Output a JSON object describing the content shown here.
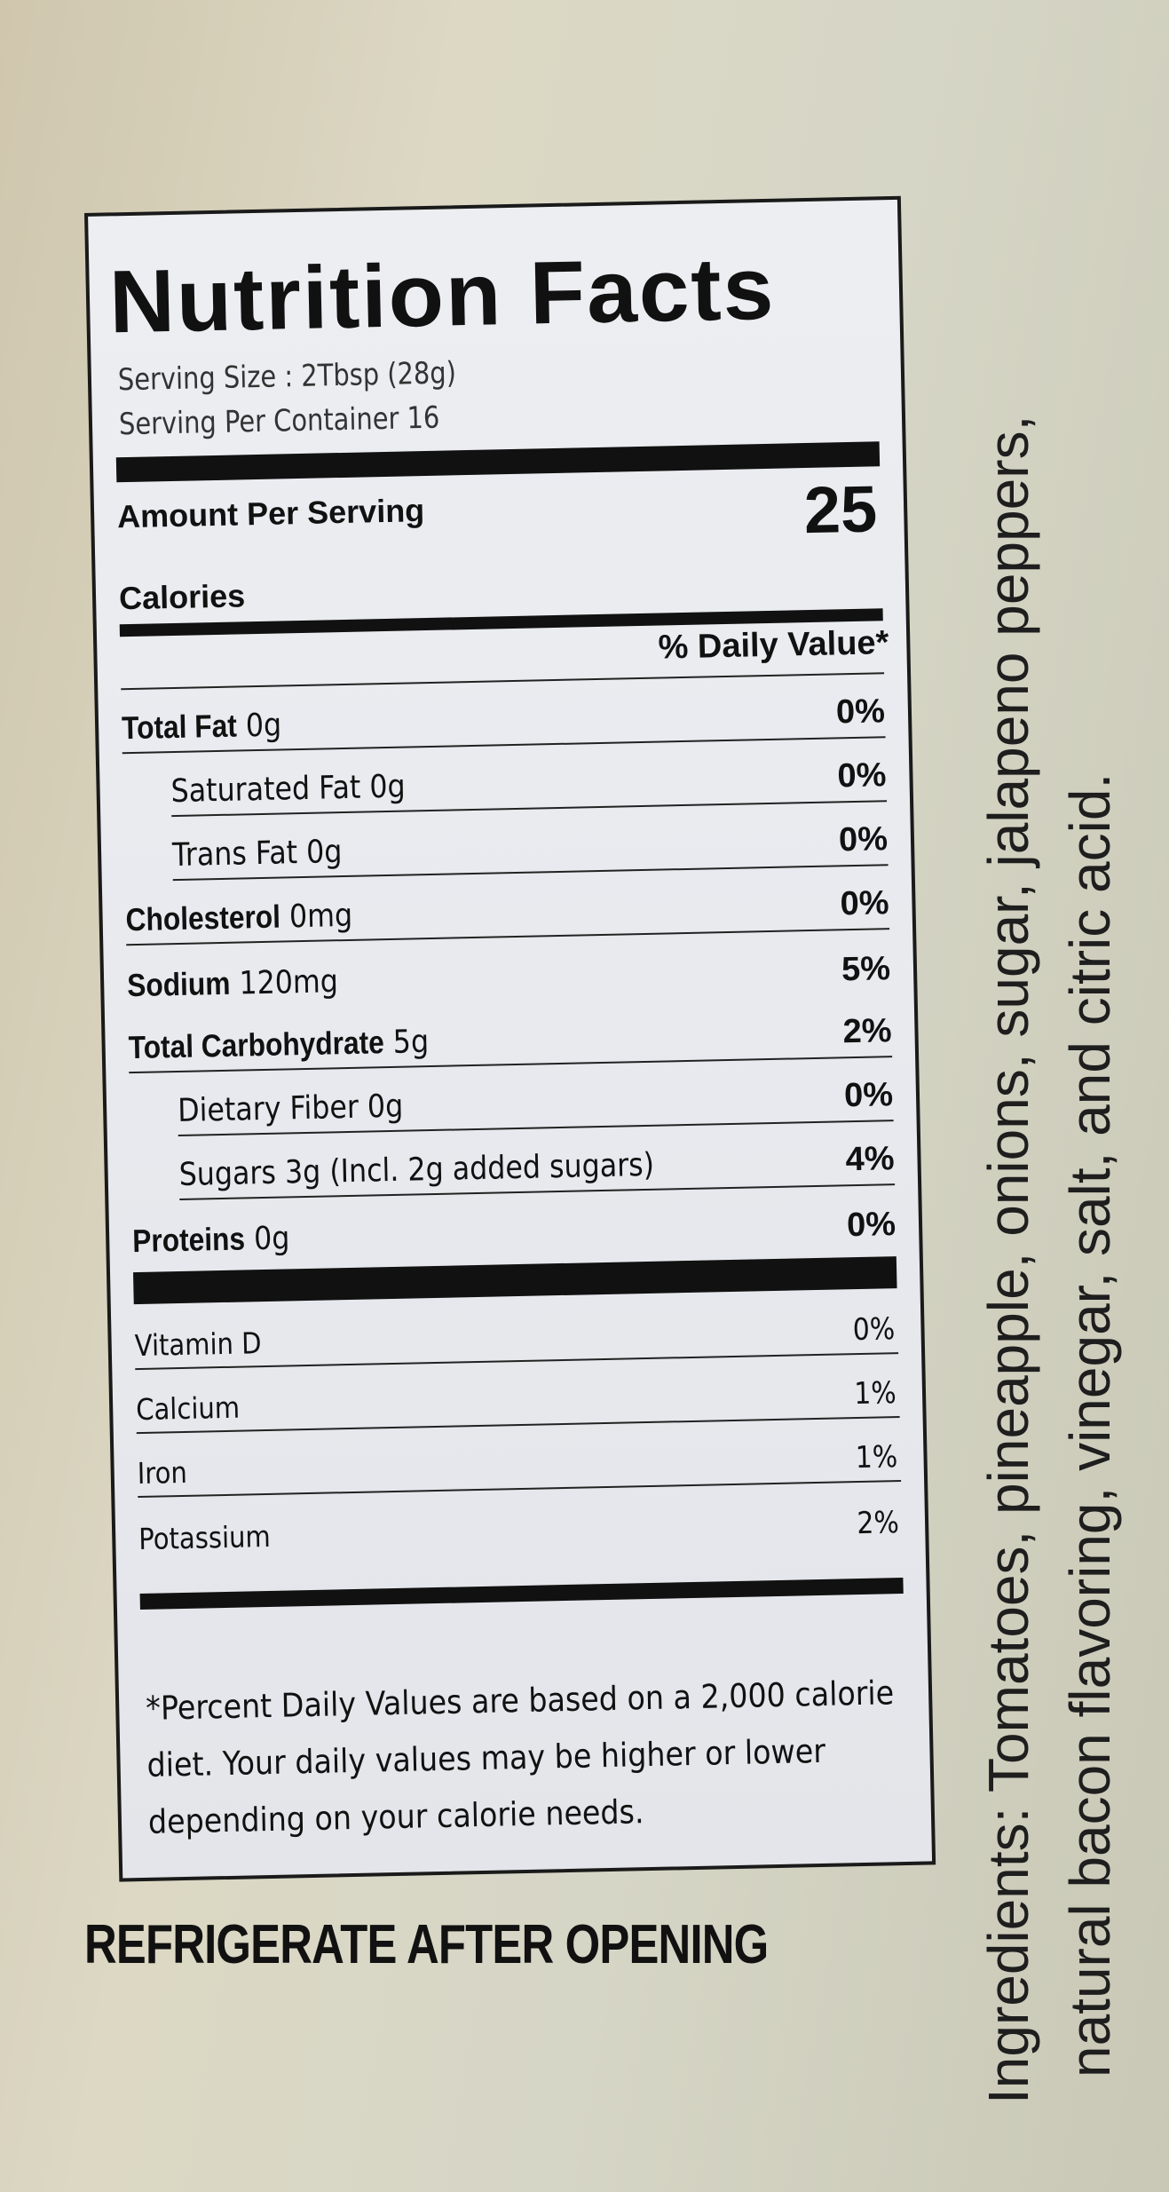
{
  "label": {
    "title": "Nutrition Facts",
    "serving_size": "Serving Size : 2Tbsp (28g)",
    "servings_per_container": "Serving Per Container 16",
    "amount_per_serving": "Amount Per Serving",
    "calories_label": "Calories",
    "calories_value": "25",
    "daily_value_header": "% Daily Value*",
    "nutrients": [
      {
        "name": "Total Fat",
        "amount": "0g",
        "dv": "0%"
      },
      {
        "name": "Saturated Fat 0g",
        "amount": "",
        "dv": "0%"
      },
      {
        "name": "Trans Fat 0g",
        "amount": "",
        "dv": "0%"
      },
      {
        "name": "Cholesterol",
        "amount": "0mg",
        "dv": "0%"
      },
      {
        "name": "Sodium",
        "amount": "120mg",
        "dv": "5%"
      },
      {
        "name": "Total Carbohydrate",
        "amount": "5g",
        "dv": "2%"
      },
      {
        "name": "Dietary Fiber 0g",
        "amount": "",
        "dv": "0%"
      },
      {
        "name": "Sugars 3g (Incl. 2g added sugars)",
        "amount": "",
        "dv": "4%"
      },
      {
        "name": "Proteins",
        "amount": "0g",
        "dv": "0%"
      }
    ],
    "vitamins": [
      {
        "name": "Vitamin D",
        "dv": "0%"
      },
      {
        "name": "Calcium",
        "dv": "1%"
      },
      {
        "name": "Iron",
        "dv": "1%"
      },
      {
        "name": "Potassium",
        "dv": "2%"
      }
    ],
    "footnote": "*Percent Daily Values are based on a 2,000 calorie diet. Your daily values may be higher or lower depending on your calorie needs."
  },
  "refrigerate": "REFRIGERATE AFTER OPENING",
  "ingredients": {
    "line1": "Ingredients: Tomatoes, pineapple, onions, sugar, jalapeno peppers,",
    "line2": "natural bacon flavoring, vinegar, salt, and citric acid."
  },
  "colors": {
    "label_bg": "#e8eaee",
    "ink": "#111111",
    "container_bg": "#d6d2bf"
  }
}
